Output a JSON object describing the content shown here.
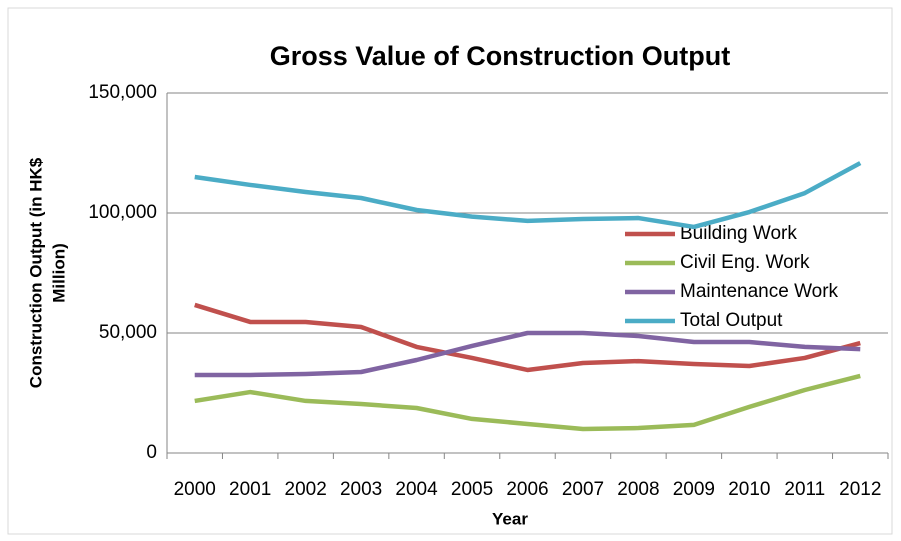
{
  "chart_data": {
    "type": "line",
    "title": "Gross Value of Construction Output",
    "xlabel": "Year",
    "ylabel": [
      "Construction Output (in HK$",
      "Million)"
    ],
    "categories": [
      "2000",
      "2001",
      "2002",
      "2003",
      "2004",
      "2005",
      "2006",
      "2007",
      "2008",
      "2009",
      "2010",
      "2011",
      "2012"
    ],
    "series": [
      {
        "name": "Building Work",
        "color": "#c0504d",
        "values": [
          61700,
          54600,
          54600,
          52500,
          44200,
          39600,
          34600,
          37500,
          38300,
          37100,
          36250,
          39600,
          45800
        ]
      },
      {
        "name": "Civil Eng. Work",
        "color": "#9bbb59",
        "values": [
          21700,
          25400,
          21700,
          20400,
          18750,
          14200,
          12100,
          10000,
          10400,
          11700,
          19200,
          26250,
          32100
        ]
      },
      {
        "name": "Maintenance Work",
        "color": "#8064a2",
        "values": [
          32500,
          32500,
          32900,
          33750,
          38750,
          44600,
          50000,
          50000,
          48750,
          46250,
          46250,
          44200,
          43300
        ]
      },
      {
        "name": "Total Output",
        "color": "#4bacc6",
        "values": [
          115000,
          111700,
          108750,
          106250,
          101250,
          98500,
          96700,
          97500,
          97900,
          94200,
          100400,
          108300,
          120800
        ]
      }
    ],
    "ylim": [
      0,
      150000
    ],
    "yticks": [
      0,
      {
        "value": 50000,
        "label": "50,000"
      },
      {
        "value": 100000,
        "label": "100,000"
      },
      {
        "value": 150000,
        "label": "150,000"
      }
    ],
    "grid": true,
    "legend": "right"
  }
}
